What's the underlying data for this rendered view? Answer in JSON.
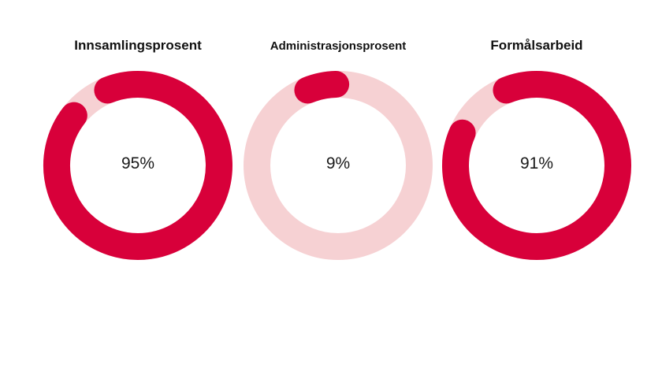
{
  "chart_data": {
    "type": "donut",
    "grid": false,
    "legend": "none",
    "colors": {
      "fill": "#d8003a",
      "track": "#f6d1d3"
    },
    "items": [
      {
        "title": "Innsamlingsprosent",
        "value": 95,
        "label": "95%"
      },
      {
        "title": "Administrasjonsprosent",
        "value": 9,
        "label": "9%"
      },
      {
        "title": "Formålsarbeid",
        "value": 91,
        "label": "91%"
      }
    ]
  }
}
